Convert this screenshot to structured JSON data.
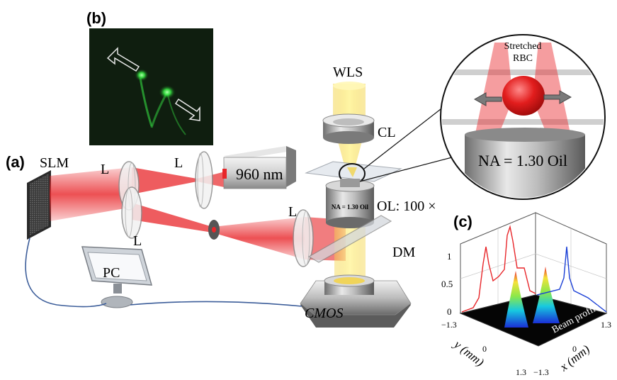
{
  "panels": {
    "a": "(a)",
    "b": "(b)",
    "c": "(c)"
  },
  "labels": {
    "slm": "SLM",
    "lens": "L",
    "laser": "960 nm",
    "wls": "WLS",
    "cl": "CL",
    "ol": "OL: 100 ×",
    "ol_barrel": "NA = 1.30 Oil",
    "dm": "DM",
    "pc": "PC",
    "cmos": "CMOS",
    "rbc_line1": "Stretched",
    "rbc_line2": "RBC",
    "na_inset": "NA = 1.30 Oil"
  },
  "beam_plot": {
    "y_ticks": [
      "1",
      "0.5",
      "0"
    ],
    "x_axis_ticks": [
      "−1.3",
      "0",
      "1.3"
    ],
    "y_axis_ticks": [
      "−1.3",
      "0",
      "1.3"
    ],
    "x_label": "x (mm)",
    "y_label": "y (mm)",
    "surface_label": "Beam profile",
    "colors": {
      "left_profile": "#e8262a",
      "right_profile": "#1a3fd6"
    }
  },
  "colors": {
    "beam": "#e8262a",
    "fluor": "#3dff4a",
    "white_light": "#f7e36a",
    "cable": "#3d5e9a"
  }
}
